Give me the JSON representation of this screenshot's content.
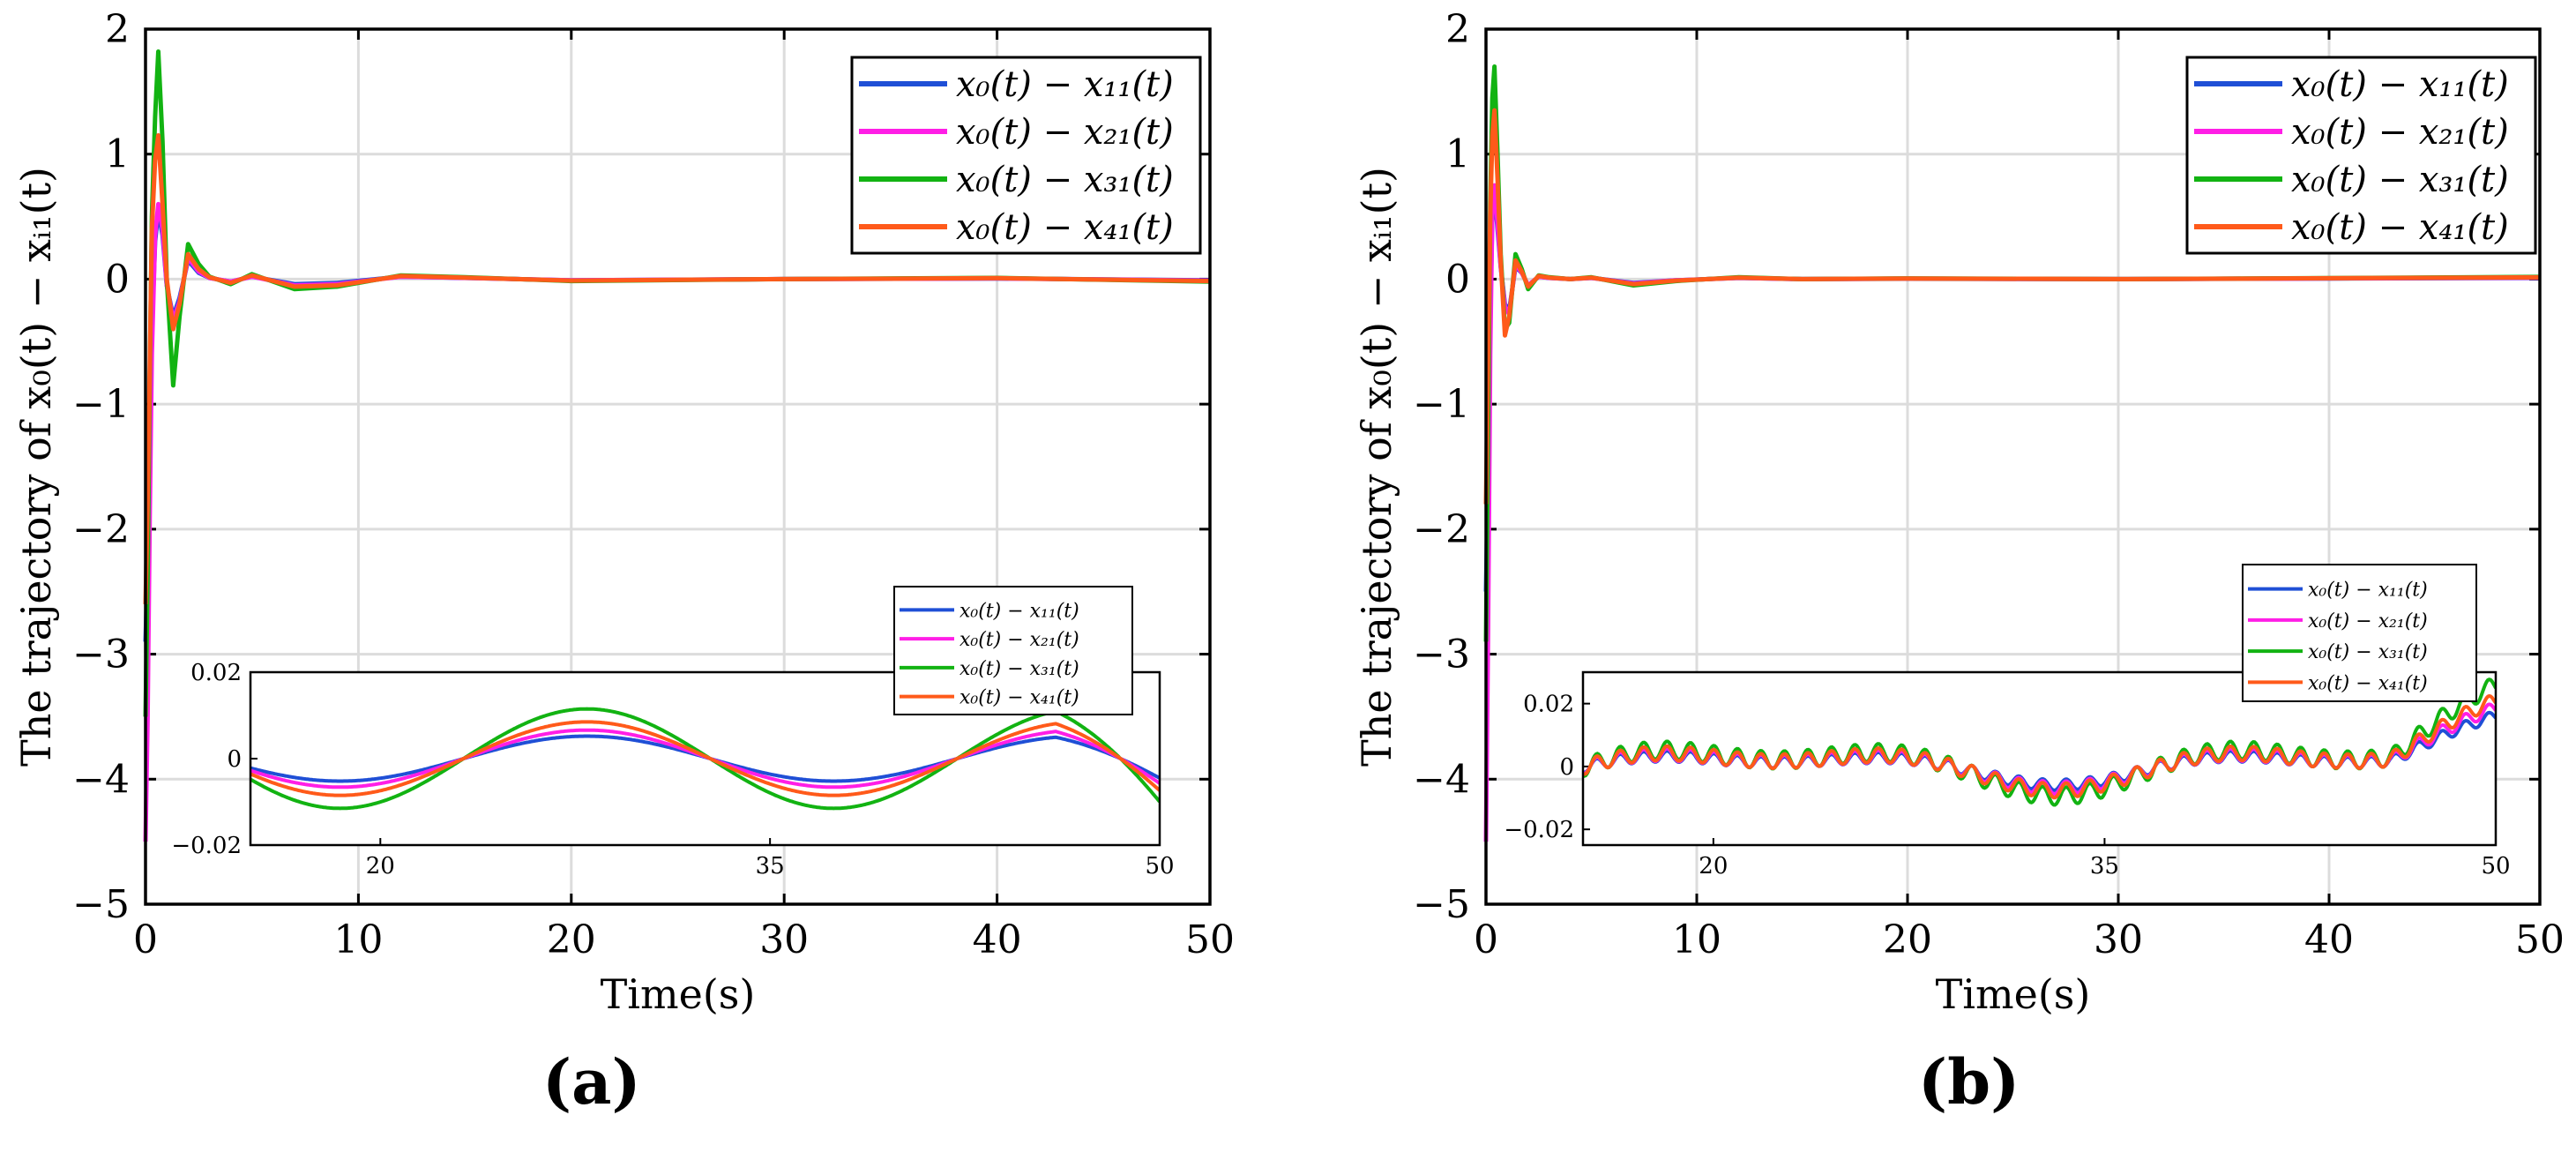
{
  "figure_labels": {
    "left": "(a)",
    "right": "(b)"
  },
  "chart_data": [
    {
      "type": "line",
      "panel": "(a)",
      "xlabel": "Time(s)",
      "ylabel": "The trajectory of x₀(t) − xᵢ₁(t)",
      "xlim": [
        0,
        50
      ],
      "ylim": [
        -5,
        2
      ],
      "xticks": [
        "0",
        "10",
        "20",
        "30",
        "40",
        "50"
      ],
      "yticks": [
        "2",
        "1",
        "0",
        "−1",
        "−2",
        "−3",
        "−4",
        "−5"
      ],
      "grid": true,
      "legend_position": "top-right",
      "series": [
        {
          "name": "x₀(t) − x₁₁(t)",
          "color": "#1f4fd6",
          "x": [
            0,
            0.1,
            0.2,
            0.3,
            0.45,
            0.6,
            0.8,
            1.0,
            1.3,
            1.6,
            2.0,
            2.5,
            3,
            4,
            5,
            7,
            9,
            12,
            15,
            20,
            30,
            40,
            50
          ],
          "y": [
            -2.9,
            -2.3,
            -1.4,
            -0.4,
            0.3,
            0.55,
            0.35,
            -0.05,
            -0.3,
            -0.15,
            0.15,
            0.05,
            0.01,
            -0.02,
            0.02,
            -0.04,
            -0.03,
            0.02,
            0.01,
            -0.01,
            0,
            0.005,
            -0.01
          ]
        },
        {
          "name": "x₀(t) − x₂₁(t)",
          "color": "#ff1ee6",
          "x": [
            0,
            0.1,
            0.2,
            0.3,
            0.45,
            0.6,
            0.8,
            1.0,
            1.3,
            1.6,
            2.0,
            2.5,
            3,
            4,
            5,
            7,
            9,
            12,
            15,
            20,
            30,
            40,
            50
          ],
          "y": [
            -4.5,
            -3.5,
            -1.9,
            -0.6,
            0.35,
            0.6,
            0.4,
            -0.05,
            -0.33,
            -0.18,
            0.17,
            0.06,
            0.01,
            -0.02,
            0.02,
            -0.05,
            -0.04,
            0.02,
            0.01,
            -0.01,
            0,
            0.006,
            -0.012
          ]
        },
        {
          "name": "x₀(t) − x₃₁(t)",
          "color": "#12b312",
          "x": [
            0,
            0.1,
            0.2,
            0.3,
            0.45,
            0.6,
            0.8,
            1.0,
            1.3,
            1.6,
            2.0,
            2.5,
            3,
            4,
            5,
            7,
            9,
            12,
            15,
            20,
            30,
            40,
            50
          ],
          "y": [
            -3.5,
            -2.4,
            -0.8,
            0.5,
            1.3,
            1.82,
            1.1,
            0.0,
            -0.85,
            -0.3,
            0.28,
            0.12,
            0.02,
            -0.04,
            0.04,
            -0.08,
            -0.06,
            0.03,
            0.015,
            -0.015,
            0,
            0.01,
            -0.02
          ]
        },
        {
          "name": "x₀(t) − x₄₁(t)",
          "color": "#ff5a1a",
          "x": [
            0,
            0.1,
            0.2,
            0.3,
            0.45,
            0.6,
            0.8,
            1.0,
            1.3,
            1.6,
            2.0,
            2.5,
            3,
            4,
            5,
            7,
            9,
            12,
            15,
            20,
            30,
            40,
            50
          ],
          "y": [
            -2.6,
            -1.8,
            -0.7,
            0.4,
            0.95,
            1.15,
            0.6,
            0.0,
            -0.4,
            -0.2,
            0.2,
            0.08,
            0.015,
            -0.03,
            0.03,
            -0.06,
            -0.05,
            0.025,
            0.012,
            -0.012,
            0,
            0.008,
            -0.015
          ]
        }
      ],
      "inset": {
        "xlim": [
          15,
          50
        ],
        "ylim": [
          -0.02,
          0.02
        ],
        "xticks": [
          "20",
          "35",
          "50"
        ],
        "yticks": [
          "0.02",
          "0",
          "−0.02"
        ],
        "amplitudes": [
          0.0052,
          0.0066,
          0.0115,
          0.0085
        ],
        "legend_position": "above-right"
      }
    },
    {
      "type": "line",
      "panel": "(b)",
      "xlabel": "Time(s)",
      "ylabel": "The trajectory of x₀(t) − xᵢ₁(t)",
      "xlim": [
        0,
        50
      ],
      "ylim": [
        -5,
        2
      ],
      "xticks": [
        "0",
        "10",
        "20",
        "30",
        "40",
        "50"
      ],
      "yticks": [
        "2",
        "1",
        "0",
        "−1",
        "−2",
        "−3",
        "−4",
        "−5"
      ],
      "grid": true,
      "legend_position": "top-right",
      "series": [
        {
          "name": "x₀(t) − x₁₁(t)",
          "color": "#1f4fd6",
          "x": [
            0,
            0.1,
            0.2,
            0.3,
            0.4,
            0.55,
            0.7,
            0.9,
            1.1,
            1.4,
            1.7,
            2.0,
            2.5,
            3,
            4,
            5,
            7,
            9,
            12,
            15,
            20,
            30,
            40,
            50
          ],
          "y": [
            -2.5,
            -1.5,
            -0.3,
            0.5,
            0.7,
            0.4,
            0.1,
            -0.2,
            -0.25,
            0.1,
            0.05,
            -0.05,
            0.02,
            0.01,
            0,
            0.01,
            -0.03,
            -0.01,
            0.01,
            0,
            0.003,
            0,
            0.005,
            0.01
          ]
        },
        {
          "name": "x₀(t) − x₂₁(t)",
          "color": "#ff1ee6",
          "x": [
            0,
            0.1,
            0.2,
            0.3,
            0.4,
            0.55,
            0.7,
            0.9,
            1.1,
            1.4,
            1.7,
            2.0,
            2.5,
            3,
            4,
            5,
            7,
            9,
            12,
            15,
            20,
            30,
            40,
            50
          ],
          "y": [
            -4.5,
            -2.8,
            -0.6,
            0.55,
            0.75,
            0.45,
            0.1,
            -0.22,
            -0.28,
            0.12,
            0.05,
            -0.05,
            0.02,
            0.01,
            0,
            0.01,
            -0.035,
            -0.01,
            0.01,
            0,
            0.004,
            0,
            0.006,
            0.012
          ]
        },
        {
          "name": "x₀(t) − x₃₁(t)",
          "color": "#12b312",
          "x": [
            0,
            0.1,
            0.2,
            0.3,
            0.4,
            0.55,
            0.7,
            0.9,
            1.1,
            1.4,
            1.7,
            2.0,
            2.5,
            3,
            4,
            5,
            7,
            9,
            12,
            15,
            20,
            30,
            40,
            50
          ],
          "y": [
            -2.9,
            -1.2,
            0.6,
            1.45,
            1.7,
            1.0,
            0.2,
            -0.4,
            -0.35,
            0.2,
            0.08,
            -0.08,
            0.03,
            0.015,
            0,
            0.015,
            -0.05,
            -0.015,
            0.015,
            0,
            0.006,
            0,
            0.008,
            0.018
          ]
        },
        {
          "name": "x₀(t) − x₄₁(t)",
          "color": "#ff5a1a",
          "x": [
            0,
            0.1,
            0.2,
            0.3,
            0.4,
            0.55,
            0.7,
            0.9,
            1.1,
            1.4,
            1.7,
            2.0,
            2.5,
            3,
            4,
            5,
            7,
            9,
            12,
            15,
            20,
            30,
            40,
            50
          ],
          "y": [
            -1.8,
            -0.6,
            0.5,
            1.15,
            1.35,
            0.8,
            0.15,
            -0.45,
            -0.3,
            0.15,
            0.06,
            -0.06,
            0.025,
            0.012,
            0,
            0.012,
            -0.04,
            -0.012,
            0.012,
            0,
            0.005,
            0,
            0.007,
            0.014
          ]
        }
      ],
      "inset": {
        "xlim": [
          15,
          50
        ],
        "ylim": [
          -0.025,
          0.03
        ],
        "xticks": [
          "20",
          "35",
          "50"
        ],
        "yticks": [
          "0.02",
          "0",
          "−0.02"
        ],
        "amplitudes": [
          0.0065,
          0.0075,
          0.0105,
          0.0085
        ],
        "legend_position": "above-right"
      }
    }
  ]
}
